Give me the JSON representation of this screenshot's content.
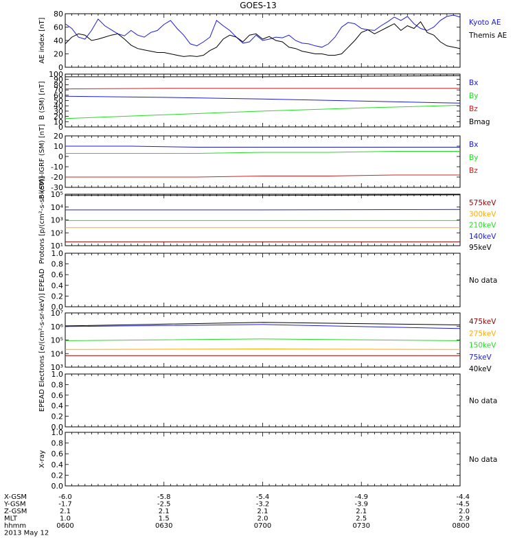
{
  "title": "GOES-13",
  "colors": {
    "black": "#000000",
    "blue": "#1a1adc",
    "green": "#22dd22",
    "red": "#cc2222",
    "orange": "#ffaa00",
    "darkred": "#990000"
  },
  "chart_data": [
    {
      "type": "line",
      "ylabel": "AE index [nT]",
      "ylim": [
        0,
        80
      ],
      "yticks": [
        "0",
        "20",
        "40",
        "60",
        "80"
      ],
      "series": [
        {
          "name": "Kyoto AE",
          "color": "blue",
          "x": [
            0,
            2,
            4,
            6,
            8,
            10,
            12,
            14,
            16,
            18,
            20,
            22,
            24,
            26,
            28,
            30,
            32,
            34,
            36,
            38,
            40,
            42,
            44,
            46,
            48,
            50,
            52,
            54,
            56,
            58,
            60,
            62,
            64,
            66,
            68,
            70,
            72,
            74,
            76,
            78,
            80,
            82,
            84,
            86,
            88,
            90,
            92,
            94,
            96,
            98,
            100,
            102,
            104,
            106,
            108,
            110,
            112,
            114,
            116,
            118,
            120
          ],
          "y": [
            65,
            58,
            45,
            42,
            55,
            72,
            62,
            56,
            50,
            47,
            55,
            48,
            45,
            52,
            55,
            64,
            70,
            58,
            48,
            35,
            32,
            38,
            45,
            70,
            62,
            55,
            45,
            36,
            38,
            48,
            40,
            42,
            45,
            44,
            48,
            40,
            36,
            35,
            32,
            30,
            35,
            45,
            60,
            67,
            65,
            58,
            56,
            55,
            62,
            68,
            75,
            70,
            76,
            65,
            58,
            55,
            60,
            70,
            76,
            78,
            75
          ]
        },
        {
          "name": "Themis AE",
          "color": "black",
          "x": [
            0,
            2,
            4,
            6,
            8,
            10,
            12,
            14,
            16,
            18,
            20,
            22,
            24,
            26,
            28,
            30,
            32,
            34,
            36,
            38,
            40,
            42,
            44,
            46,
            48,
            50,
            52,
            54,
            56,
            58,
            60,
            62,
            64,
            66,
            68,
            70,
            72,
            74,
            76,
            78,
            80,
            82,
            84,
            86,
            88,
            90,
            92,
            94,
            96,
            98,
            100,
            102,
            104,
            106,
            108,
            110,
            112,
            114,
            116,
            118,
            120
          ],
          "y": [
            35,
            45,
            50,
            48,
            40,
            42,
            45,
            48,
            50,
            42,
            33,
            28,
            26,
            24,
            22,
            22,
            20,
            18,
            16,
            17,
            16,
            18,
            25,
            30,
            42,
            48,
            45,
            38,
            48,
            50,
            42,
            46,
            40,
            38,
            30,
            28,
            24,
            22,
            20,
            20,
            18,
            18,
            20,
            30,
            40,
            52,
            56,
            50,
            55,
            60,
            65,
            55,
            62,
            58,
            68,
            52,
            48,
            38,
            32,
            30,
            28
          ]
        }
      ]
    },
    {
      "type": "line",
      "ylabel": "B (SM) [nT]",
      "ylim": [
        0,
        100
      ],
      "yticks": [
        "0",
        "10",
        "20",
        "30",
        "40",
        "50",
        "60",
        "70",
        "80",
        "90",
        "100"
      ],
      "series": [
        {
          "name": "Bx",
          "color": "blue",
          "x": [
            0,
            30,
            60,
            90,
            120
          ],
          "y": [
            58,
            56,
            53,
            49,
            45
          ]
        },
        {
          "name": "By",
          "color": "green",
          "x": [
            0,
            30,
            60,
            90,
            120
          ],
          "y": [
            16,
            23,
            30,
            36,
            41
          ]
        },
        {
          "name": "Bz",
          "color": "red",
          "x": [
            0,
            30,
            60,
            90,
            120
          ],
          "y": [
            72,
            73,
            73,
            73,
            73
          ]
        },
        {
          "name": "Bmag",
          "color": "black",
          "x": [
            0,
            30,
            60,
            90,
            120
          ],
          "y": [
            95,
            95,
            95,
            96,
            97
          ]
        }
      ]
    },
    {
      "type": "line",
      "ylabel": "B (SM)-IGRF (SM) [nT]",
      "ylim": [
        -30,
        20
      ],
      "yticks": [
        "-30",
        "-20",
        "-10",
        "0",
        "10",
        "20"
      ],
      "series": [
        {
          "name": "Bx",
          "color": "blue",
          "x": [
            0,
            20,
            40,
            60,
            80,
            100,
            120
          ],
          "y": [
            10,
            10,
            9,
            9,
            9,
            9,
            9
          ]
        },
        {
          "name": "By",
          "color": "green",
          "x": [
            0,
            20,
            40,
            60,
            80,
            100,
            120
          ],
          "y": [
            3,
            3,
            3,
            4,
            4,
            5,
            5
          ]
        },
        {
          "name": "Bz",
          "color": "red",
          "x": [
            0,
            20,
            40,
            60,
            80,
            100,
            120
          ],
          "y": [
            -20,
            -20,
            -20,
            -19,
            -19,
            -18,
            -18
          ]
        }
      ]
    },
    {
      "type": "line",
      "ylabel": "Protons [p/(cm²-s-sr-keV)]",
      "scale": "log",
      "ylim": [
        10,
        100000
      ],
      "yticks": [
        "10¹",
        "10²",
        "10³",
        "10⁴",
        "10⁵"
      ],
      "series": [
        {
          "name": "575keV",
          "color": "darkred",
          "x": [
            0,
            60,
            120
          ],
          "y": [
            20,
            20,
            20
          ]
        },
        {
          "name": "300keV",
          "color": "orange",
          "x": [
            0,
            60,
            120
          ],
          "y": [
            250,
            250,
            250
          ]
        },
        {
          "name": "210keV",
          "color": "green",
          "x": [
            0,
            60,
            120
          ],
          "y": [
            900,
            900,
            900
          ]
        },
        {
          "name": "140keV",
          "color": "blue",
          "x": [
            0,
            60,
            120
          ],
          "y": [
            6000,
            6000,
            6500
          ]
        },
        {
          "name": "95keV",
          "color": "black",
          "x": [
            0,
            60,
            120
          ],
          "y": [
            80000,
            80000,
            90000
          ]
        }
      ]
    },
    {
      "type": "line",
      "ylabel": "EPEAD",
      "ylim": [
        0,
        1
      ],
      "yticks": [
        "0.0",
        "0.2",
        "0.4",
        "0.6",
        "0.8",
        "1.0"
      ],
      "note": "No data",
      "series": []
    },
    {
      "type": "line",
      "ylabel": "Electrons [e/(cm²-s-sr-keV)]",
      "scale": "log",
      "ylim": [
        1000,
        10000000
      ],
      "yticks": [
        "10³",
        "10⁴",
        "10⁵",
        "10⁶",
        "10⁷"
      ],
      "series": [
        {
          "name": "475keV",
          "color": "darkred",
          "x": [
            0,
            60,
            120
          ],
          "y": [
            7000,
            7000,
            7000
          ]
        },
        {
          "name": "275keV",
          "color": "orange",
          "x": [
            0,
            60,
            120
          ],
          "y": [
            20000,
            22000,
            20000
          ]
        },
        {
          "name": "150keV",
          "color": "green",
          "x": [
            0,
            60,
            120
          ],
          "y": [
            90000,
            120000,
            90000
          ]
        },
        {
          "name": "75keV",
          "color": "blue",
          "x": [
            0,
            60,
            120
          ],
          "y": [
            1000000,
            1400000,
            700000
          ]
        },
        {
          "name": "40keV",
          "color": "black",
          "x": [
            0,
            60,
            120
          ],
          "y": [
            1100000,
            2000000,
            1300000
          ]
        }
      ]
    },
    {
      "type": "line",
      "ylabel": "EPEAD",
      "ylim": [
        0,
        1
      ],
      "yticks": [
        "0.0",
        "0.2",
        "0.4",
        "0.6",
        "0.8",
        "1.0"
      ],
      "note": "No data",
      "series": []
    },
    {
      "type": "line",
      "ylabel": "X-ray",
      "ylim": [
        0,
        1
      ],
      "yticks": [
        "0.0",
        "0.2",
        "0.4",
        "0.6",
        "0.8",
        "1.0"
      ],
      "note": "No data",
      "series": []
    }
  ],
  "xaxis": {
    "rows": [
      {
        "label": "X-GSM",
        "values": [
          "-6.0",
          "-5.8",
          "-5.4",
          "-4.9",
          "-4.4"
        ]
      },
      {
        "label": "Y-GSM",
        "values": [
          "-1.7",
          "-2.5",
          "-3.2",
          "-3.9",
          "-4.5"
        ]
      },
      {
        "label": "Z-GSM",
        "values": [
          "2.1",
          "2.1",
          "2.1",
          "2.1",
          "2.0"
        ]
      },
      {
        "label": "MLT",
        "values": [
          "1.0",
          "1.5",
          "2.0",
          "2.5",
          "2.9"
        ]
      },
      {
        "label": "hhmm",
        "values": [
          "0600",
          "0630",
          "0700",
          "0730",
          "0800"
        ]
      }
    ],
    "date": "2013 May 12"
  }
}
